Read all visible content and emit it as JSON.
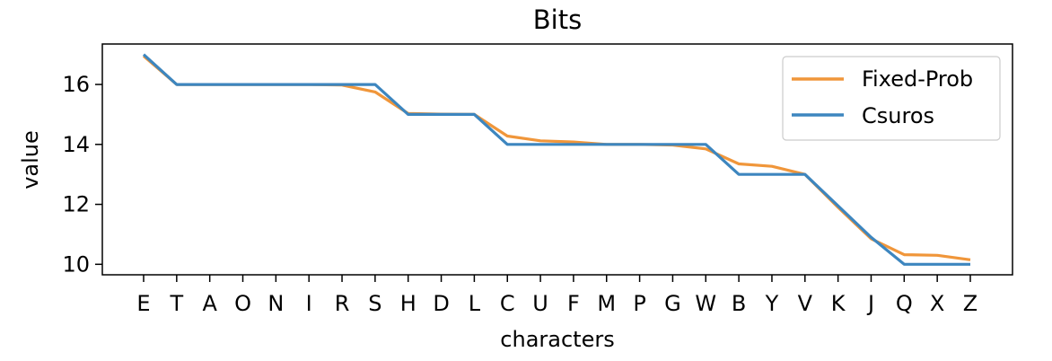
{
  "chart_data": {
    "type": "line",
    "title": "Bits",
    "xlabel": "characters",
    "ylabel": "value",
    "categories": [
      "E",
      "T",
      "A",
      "O",
      "N",
      "I",
      "R",
      "S",
      "H",
      "D",
      "L",
      "C",
      "U",
      "F",
      "M",
      "P",
      "G",
      "W",
      "B",
      "Y",
      "V",
      "K",
      "J",
      "Q",
      "X",
      "Z"
    ],
    "ylim": [
      9.65,
      17.35
    ],
    "yticks": [
      10,
      12,
      14,
      16
    ],
    "grid": false,
    "legend_position": "top-right",
    "series": [
      {
        "name": "Fixed-Prob",
        "color": "#f0963a",
        "values": [
          16.95,
          16.0,
          16.0,
          16.0,
          16.0,
          16.0,
          15.98,
          15.75,
          15.03,
          15.01,
          15.0,
          14.28,
          14.12,
          14.08,
          14.0,
          14.0,
          13.98,
          13.85,
          13.35,
          13.27,
          13.0,
          11.9,
          10.85,
          10.32,
          10.3,
          10.15
        ]
      },
      {
        "name": "Csuros",
        "color": "#3d86bf",
        "values": [
          17.0,
          16.0,
          16.0,
          16.0,
          16.0,
          16.0,
          16.0,
          16.0,
          15.0,
          15.0,
          15.0,
          14.0,
          14.0,
          14.0,
          14.0,
          14.0,
          14.0,
          14.0,
          13.0,
          13.0,
          13.0,
          11.95,
          10.9,
          10.0,
          10.0,
          10.0
        ]
      }
    ]
  }
}
